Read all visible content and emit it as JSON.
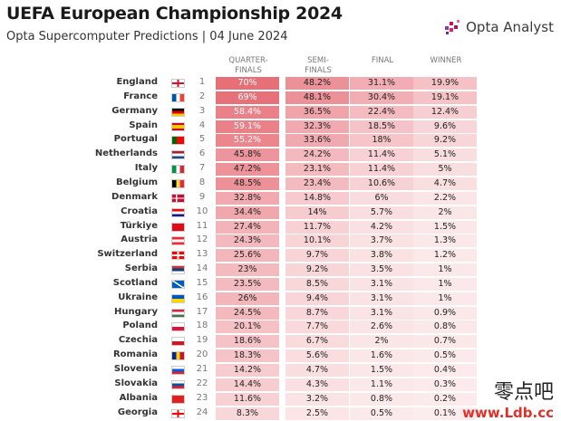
{
  "header": {
    "title": "UEFA European Championship 2024",
    "subtitle": "Opta Supercomputer Predictions | 04 June 2024",
    "logo_text": "Opta Analyst"
  },
  "columns": [
    {
      "line1": "QUARTER-",
      "line2": "FINALS"
    },
    {
      "line1": "SEMI-",
      "line2": "FINALS"
    },
    {
      "line1": "FINAL",
      "line2": ""
    },
    {
      "line1": "WINNER",
      "line2": ""
    }
  ],
  "watermark": {
    "line1": "零点吧",
    "line2": "www.Ldb.cc"
  },
  "colors": {
    "cell_base": "#fbe9ea",
    "cell_max": "#e8747c"
  },
  "chart_data": {
    "type": "table",
    "title": "UEFA European Championship 2024",
    "subtitle": "Opta Supercomputer Predictions | 04 June 2024",
    "columns": [
      "QUARTER-FINALS",
      "SEMI-FINALS",
      "FINAL",
      "WINNER"
    ],
    "rows": [
      {
        "team": "England",
        "rank": "1",
        "flag": "eng",
        "values": [
          "70%",
          "48.2%",
          "31.1%",
          "19.9%"
        ]
      },
      {
        "team": "France",
        "rank": "2",
        "flag": "fra",
        "values": [
          "69%",
          "48.1%",
          "30.4%",
          "19.1%"
        ]
      },
      {
        "team": "Germany",
        "rank": "3",
        "flag": "ger",
        "values": [
          "58.4%",
          "36.5%",
          "22.4%",
          "12.4%"
        ]
      },
      {
        "team": "Spain",
        "rank": "4",
        "flag": "esp",
        "values": [
          "59.1%",
          "32.3%",
          "18.5%",
          "9.6%"
        ]
      },
      {
        "team": "Portugal",
        "rank": "5",
        "flag": "por",
        "values": [
          "55.2%",
          "33.6%",
          "18%",
          "9.2%"
        ]
      },
      {
        "team": "Netherlands",
        "rank": "6",
        "flag": "ned",
        "values": [
          "45.8%",
          "24.2%",
          "11.4%",
          "5.1%"
        ]
      },
      {
        "team": "Italy",
        "rank": "7",
        "flag": "ita",
        "values": [
          "47.2%",
          "23.1%",
          "11.4%",
          "5%"
        ]
      },
      {
        "team": "Belgium",
        "rank": "8",
        "flag": "bel",
        "values": [
          "48.5%",
          "23.4%",
          "10.6%",
          "4.7%"
        ]
      },
      {
        "team": "Denmark",
        "rank": "9",
        "flag": "den",
        "values": [
          "32.8%",
          "14.8%",
          "6%",
          "2.2%"
        ]
      },
      {
        "team": "Croatia",
        "rank": "10",
        "flag": "cro",
        "values": [
          "34.4%",
          "14%",
          "5.7%",
          "2%"
        ]
      },
      {
        "team": "Türkiye",
        "rank": "11",
        "flag": "tur",
        "values": [
          "27.4%",
          "11.7%",
          "4.2%",
          "1.5%"
        ]
      },
      {
        "team": "Austria",
        "rank": "12",
        "flag": "aut",
        "values": [
          "24.3%",
          "10.1%",
          "3.7%",
          "1.3%"
        ]
      },
      {
        "team": "Switzerland",
        "rank": "13",
        "flag": "sui",
        "values": [
          "25.6%",
          "9.7%",
          "3.8%",
          "1.2%"
        ]
      },
      {
        "team": "Serbia",
        "rank": "14",
        "flag": "srb",
        "values": [
          "23%",
          "9.2%",
          "3.5%",
          "1%"
        ]
      },
      {
        "team": "Scotland",
        "rank": "15",
        "flag": "sco",
        "values": [
          "23.5%",
          "8.5%",
          "3.1%",
          "1%"
        ]
      },
      {
        "team": "Ukraine",
        "rank": "16",
        "flag": "ukr",
        "values": [
          "26%",
          "9.4%",
          "3.1%",
          "1%"
        ]
      },
      {
        "team": "Hungary",
        "rank": "17",
        "flag": "hun",
        "values": [
          "24.5%",
          "8.7%",
          "3.1%",
          "0.9%"
        ]
      },
      {
        "team": "Poland",
        "rank": "18",
        "flag": "pol",
        "values": [
          "20.1%",
          "7.7%",
          "2.6%",
          "0.8%"
        ]
      },
      {
        "team": "Czechia",
        "rank": "19",
        "flag": "cze",
        "values": [
          "18.6%",
          "6.7%",
          "2%",
          "0.7%"
        ]
      },
      {
        "team": "Romania",
        "rank": "20",
        "flag": "rou",
        "values": [
          "18.3%",
          "5.6%",
          "1.6%",
          "0.5%"
        ]
      },
      {
        "team": "Slovenia",
        "rank": "21",
        "flag": "svn",
        "values": [
          "14.2%",
          "4.7%",
          "1.5%",
          "0.4%"
        ]
      },
      {
        "team": "Slovakia",
        "rank": "22",
        "flag": "svk",
        "values": [
          "14.4%",
          "4.3%",
          "1.1%",
          "0.3%"
        ]
      },
      {
        "team": "Albania",
        "rank": "23",
        "flag": "alb",
        "values": [
          "11.6%",
          "3.2%",
          "0.8%",
          "0.2%"
        ]
      },
      {
        "team": "Georgia",
        "rank": "24",
        "flag": "geo",
        "values": [
          "8.3%",
          "2.5%",
          "0.5%",
          "0.1%"
        ]
      }
    ]
  }
}
